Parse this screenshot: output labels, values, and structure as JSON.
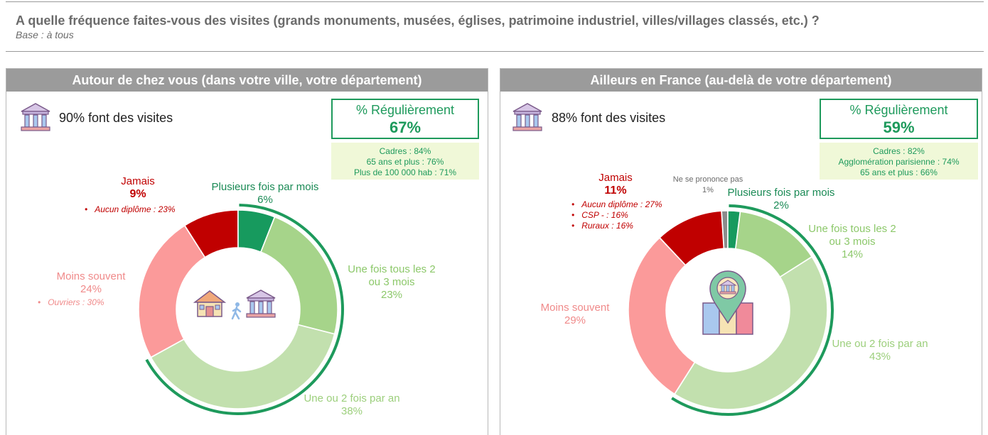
{
  "question": "A quelle fréquence faites-vous des visites (grands monuments, musées, églises, patrimoine industriel, villes/villages classés, etc.) ?",
  "base": "Base : à tous",
  "colors": {
    "plusieurs_fois_par_mois": "#179a5e",
    "une_fois_tous_2_3_mois": "#a6d48a",
    "une_ou_2_fois_par_an": "#c2e0ae",
    "moins_souvent": "#fb9a9a",
    "jamais": "#c00000",
    "ne_se_prononce_pas": "#8c8c8c",
    "regulierement_arc": "#1e9a5c"
  },
  "panels": [
    {
      "title": "Autour de chez vous (dans votre ville, votre département)",
      "visits_text": "90% font des visites",
      "regulierement_label": "% Régulièrement",
      "regulierement_value": "67%",
      "regulierement_details": [
        "Cadres  : 84%",
        "65 ans et plus : 76%",
        "Plus de 100 000 hab : 71%"
      ],
      "labels": {
        "plusieurs": {
          "name": "Plusieurs fois par mois",
          "pct": "6%"
        },
        "tous23": {
          "name1": "Une fois tous les 2",
          "name2": "ou 3 mois",
          "pct": "23%"
        },
        "unou2": {
          "name": "Une ou 2 fois par an",
          "pct": "38%"
        },
        "moins": {
          "name": "Moins souvent",
          "pct": "24%",
          "sub": [
            "Ouvriers : 30%"
          ]
        },
        "jamais": {
          "name": "Jamais",
          "pct": "9%",
          "sub": [
            "Aucun diplôme : 23%"
          ]
        }
      },
      "icon": "museum-icon",
      "center_icons": [
        "house-icon",
        "walking-person-icon",
        "museum-icon"
      ]
    },
    {
      "title": "Ailleurs en France (au-delà de votre département)",
      "visits_text": "88% font des visites",
      "regulierement_label": "% Régulièrement",
      "regulierement_value": "59%",
      "regulierement_details": [
        "Cadres : 82%",
        "Agglomération parisienne : 74%",
        "65 ans et plus : 66%"
      ],
      "labels": {
        "nsp": {
          "name": "Ne se prononce pas",
          "pct": "1%"
        },
        "plusieurs": {
          "name": "Plusieurs fois par mois",
          "pct": "2%"
        },
        "tous23": {
          "name1": "Une fois tous les 2",
          "name2": "ou 3 mois",
          "pct": "14%"
        },
        "unou2": {
          "name": "Une ou 2 fois par an",
          "pct": "43%"
        },
        "moins": {
          "name": "Moins souvent",
          "pct": "29%"
        },
        "jamais": {
          "name": "Jamais",
          "pct": "11%",
          "sub": [
            "Aucun diplôme : 27%",
            "CSP - : 16%",
            "Ruraux : 16%"
          ]
        }
      },
      "icon": "museum-icon",
      "center_icons": [
        "map-pin-icon"
      ]
    }
  ],
  "chart_data": [
    {
      "type": "pie",
      "title": "Autour de chez vous (dans votre ville, votre département)",
      "categories": [
        "Plusieurs fois par mois",
        "Une fois tous les 2 ou 3 mois",
        "Une ou 2 fois par an",
        "Moins souvent",
        "Jamais"
      ],
      "values": [
        6,
        23,
        38,
        24,
        9
      ],
      "regulierement": 67
    },
    {
      "type": "pie",
      "title": "Ailleurs en France (au-delà de votre département)",
      "categories": [
        "Plusieurs fois par mois",
        "Une fois tous les 2 ou 3 mois",
        "Une ou 2 fois par an",
        "Moins souvent",
        "Jamais",
        "Ne se prononce pas"
      ],
      "values": [
        2,
        14,
        43,
        29,
        11,
        1
      ],
      "regulierement": 59
    }
  ]
}
